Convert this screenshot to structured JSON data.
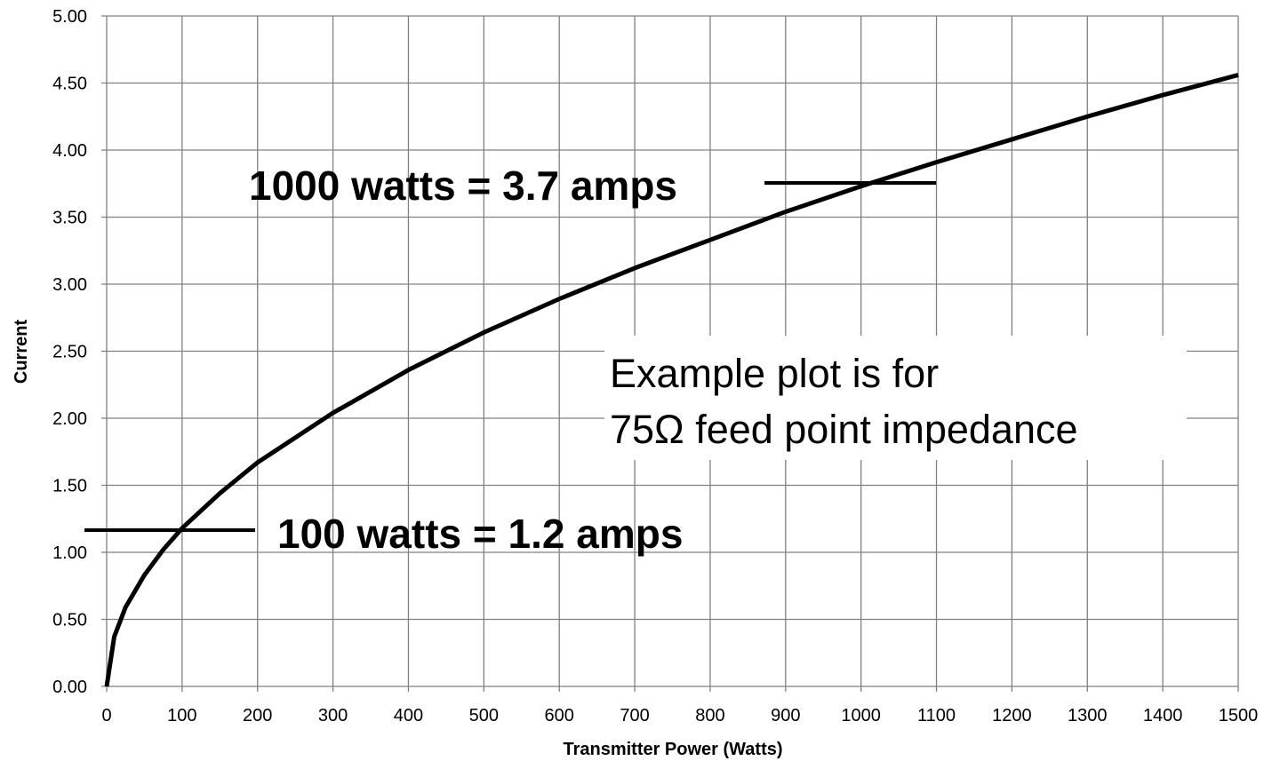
{
  "chart_data": {
    "type": "line",
    "x_label": "Transmitter Power (Watts)",
    "y_label": "Current",
    "annotations": [
      "1000 watts = 3.7 amps",
      "100 watts = 1.2 amps"
    ],
    "note": [
      "Example plot is for",
      "75Ω feed point impedance"
    ],
    "x": [
      0,
      10,
      25,
      50,
      75,
      100,
      150,
      200,
      300,
      400,
      500,
      600,
      700,
      800,
      900,
      1000,
      1100,
      1200,
      1300,
      1400,
      1500
    ],
    "series": [
      {
        "name": "Current",
        "color": "#000000",
        "values": [
          0,
          0.37,
          0.59,
          0.83,
          1.02,
          1.18,
          1.44,
          1.67,
          2.04,
          2.36,
          2.64,
          2.89,
          3.12,
          3.33,
          3.54,
          3.73,
          3.91,
          4.08,
          4.25,
          4.41,
          4.56
        ]
      }
    ],
    "xlim": [
      0,
      1500
    ],
    "xticks": [
      0,
      100,
      200,
      300,
      400,
      500,
      600,
      700,
      800,
      900,
      1000,
      1100,
      1200,
      1300,
      1400,
      1500
    ],
    "ylim": [
      0,
      5
    ],
    "yticks": [
      {
        "value": 0,
        "label": "0.00"
      },
      {
        "value": 0.5,
        "label": "0.50"
      },
      {
        "value": 1,
        "label": "1.00"
      },
      {
        "value": 1.5,
        "label": "1.50"
      },
      {
        "value": 2,
        "label": "2.00"
      },
      {
        "value": 2.5,
        "label": "2.50"
      },
      {
        "value": 3,
        "label": "3.00"
      },
      {
        "value": 3.5,
        "label": "3.50"
      },
      {
        "value": 4,
        "label": "4.00"
      },
      {
        "value": 4.5,
        "label": "4.50"
      },
      {
        "value": 5,
        "label": "5.00"
      }
    ],
    "grid": true
  }
}
